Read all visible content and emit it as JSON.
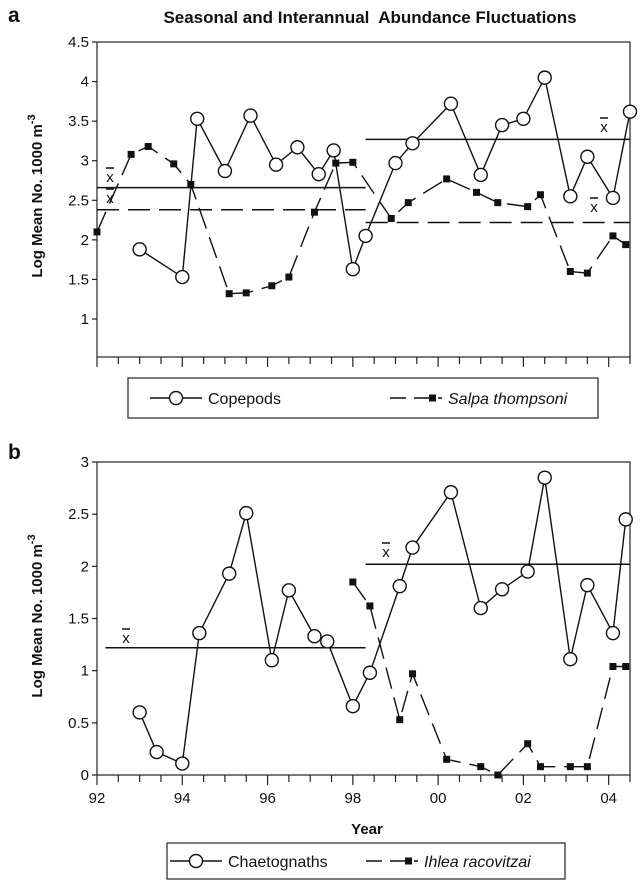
{
  "figure": {
    "title": "Seasonal and Interannual  Abundance Fluctuations",
    "xlabel": "Year",
    "xbar_symbol": "x"
  },
  "chart_data": [
    {
      "panel": "a",
      "type": "line",
      "ylabel": "Log Mean No. 1000 m",
      "ylabel_superscript": "-3",
      "ylim": [
        0.5,
        4.5
      ],
      "yticks": [
        "1",
        "1.5",
        "2",
        "2.5",
        "3",
        "3.5",
        "4",
        "4.5"
      ],
      "xlim": [
        92,
        104.5
      ],
      "series": [
        {
          "name": "Copepods",
          "marker": "open-circle",
          "line": "solid",
          "x": [
            93.0,
            94.0,
            94.35,
            95.0,
            95.6,
            96.2,
            96.7,
            97.2,
            97.55,
            98.0,
            98.3,
            99.0,
            99.4,
            100.3,
            101.0,
            101.5,
            102.0,
            102.5,
            103.1,
            103.5,
            104.1,
            104.5
          ],
          "y": [
            1.88,
            1.53,
            3.53,
            2.87,
            3.57,
            2.95,
            3.17,
            2.83,
            3.13,
            1.63,
            2.05,
            2.97,
            3.22,
            3.72,
            2.82,
            3.45,
            3.53,
            4.05,
            2.55,
            3.05,
            2.53,
            3.62
          ]
        },
        {
          "name": "Salpa thompsoni",
          "marker": "filled-square",
          "line": "dashed",
          "x": [
            92.0,
            92.8,
            93.2,
            93.8,
            94.2,
            95.1,
            95.5,
            96.1,
            96.5,
            97.1,
            97.6,
            98.0,
            98.9,
            99.3,
            100.2,
            100.9,
            101.4,
            102.1,
            102.4,
            103.1,
            103.5,
            104.1,
            104.4
          ],
          "y": [
            2.1,
            3.08,
            3.18,
            2.96,
            2.7,
            1.32,
            1.33,
            1.42,
            1.53,
            2.35,
            2.97,
            2.98,
            2.27,
            2.47,
            2.77,
            2.6,
            2.47,
            2.42,
            2.57,
            1.6,
            1.58,
            2.05,
            1.94
          ]
        }
      ],
      "means": [
        {
          "series": "Copepods",
          "x": [
            92.0,
            98.3
          ],
          "y": 2.66,
          "style": "solid"
        },
        {
          "series": "Copepods",
          "x": [
            98.3,
            104.5
          ],
          "y": 3.27,
          "style": "solid"
        },
        {
          "series": "Salpa thompsoni",
          "x": [
            92.0,
            98.3
          ],
          "y": 2.38,
          "style": "dashed"
        },
        {
          "series": "Salpa thompsoni",
          "x": [
            98.3,
            104.5
          ],
          "y": 2.22,
          "style": "dashed"
        }
      ],
      "legend": [
        "Copepods",
        "Salpa thompsoni"
      ]
    },
    {
      "panel": "b",
      "type": "line",
      "ylabel": "Log Mean No. 1000 m",
      "ylabel_superscript": "-3",
      "ylim": [
        0,
        3
      ],
      "yticks": [
        "0",
        "0.5",
        "1",
        "1.5",
        "2",
        "2.5",
        "3"
      ],
      "xlim": [
        92,
        104.5
      ],
      "xticks": [
        "92",
        "94",
        "96",
        "98",
        "00",
        "02",
        "04"
      ],
      "series": [
        {
          "name": "Chaetognaths",
          "marker": "open-circle",
          "line": "solid",
          "x": [
            93.0,
            93.4,
            94.0,
            94.4,
            95.1,
            95.5,
            96.1,
            96.5,
            97.1,
            97.4,
            98.0,
            98.4,
            99.1,
            99.4,
            100.3,
            101.0,
            101.5,
            102.1,
            102.5,
            103.1,
            103.5,
            104.1,
            104.4
          ],
          "y": [
            0.6,
            0.22,
            0.11,
            1.36,
            1.93,
            2.51,
            1.1,
            1.77,
            1.33,
            1.28,
            0.66,
            0.98,
            1.81,
            2.18,
            2.71,
            1.6,
            1.78,
            1.95,
            2.85,
            1.11,
            1.82,
            1.36,
            2.45
          ]
        },
        {
          "name": "Ihlea racovitzai",
          "marker": "filled-square",
          "line": "dashed",
          "x": [
            98.0,
            98.4,
            99.1,
            99.4,
            100.2,
            101.0,
            101.4,
            102.1,
            102.4,
            103.1,
            103.5,
            104.1,
            104.4
          ],
          "y": [
            1.85,
            1.62,
            0.53,
            0.97,
            0.15,
            0.08,
            0.0,
            0.3,
            0.08,
            0.08,
            0.08,
            1.04,
            1.04
          ]
        }
      ],
      "means": [
        {
          "series": "Chaetognaths",
          "x": [
            92.2,
            98.3
          ],
          "y": 1.22,
          "style": "solid"
        },
        {
          "series": "Chaetognaths",
          "x": [
            98.3,
            104.5
          ],
          "y": 2.02,
          "style": "solid"
        }
      ],
      "legend": [
        "Chaetognaths",
        "Ihlea racovitzai"
      ]
    }
  ]
}
